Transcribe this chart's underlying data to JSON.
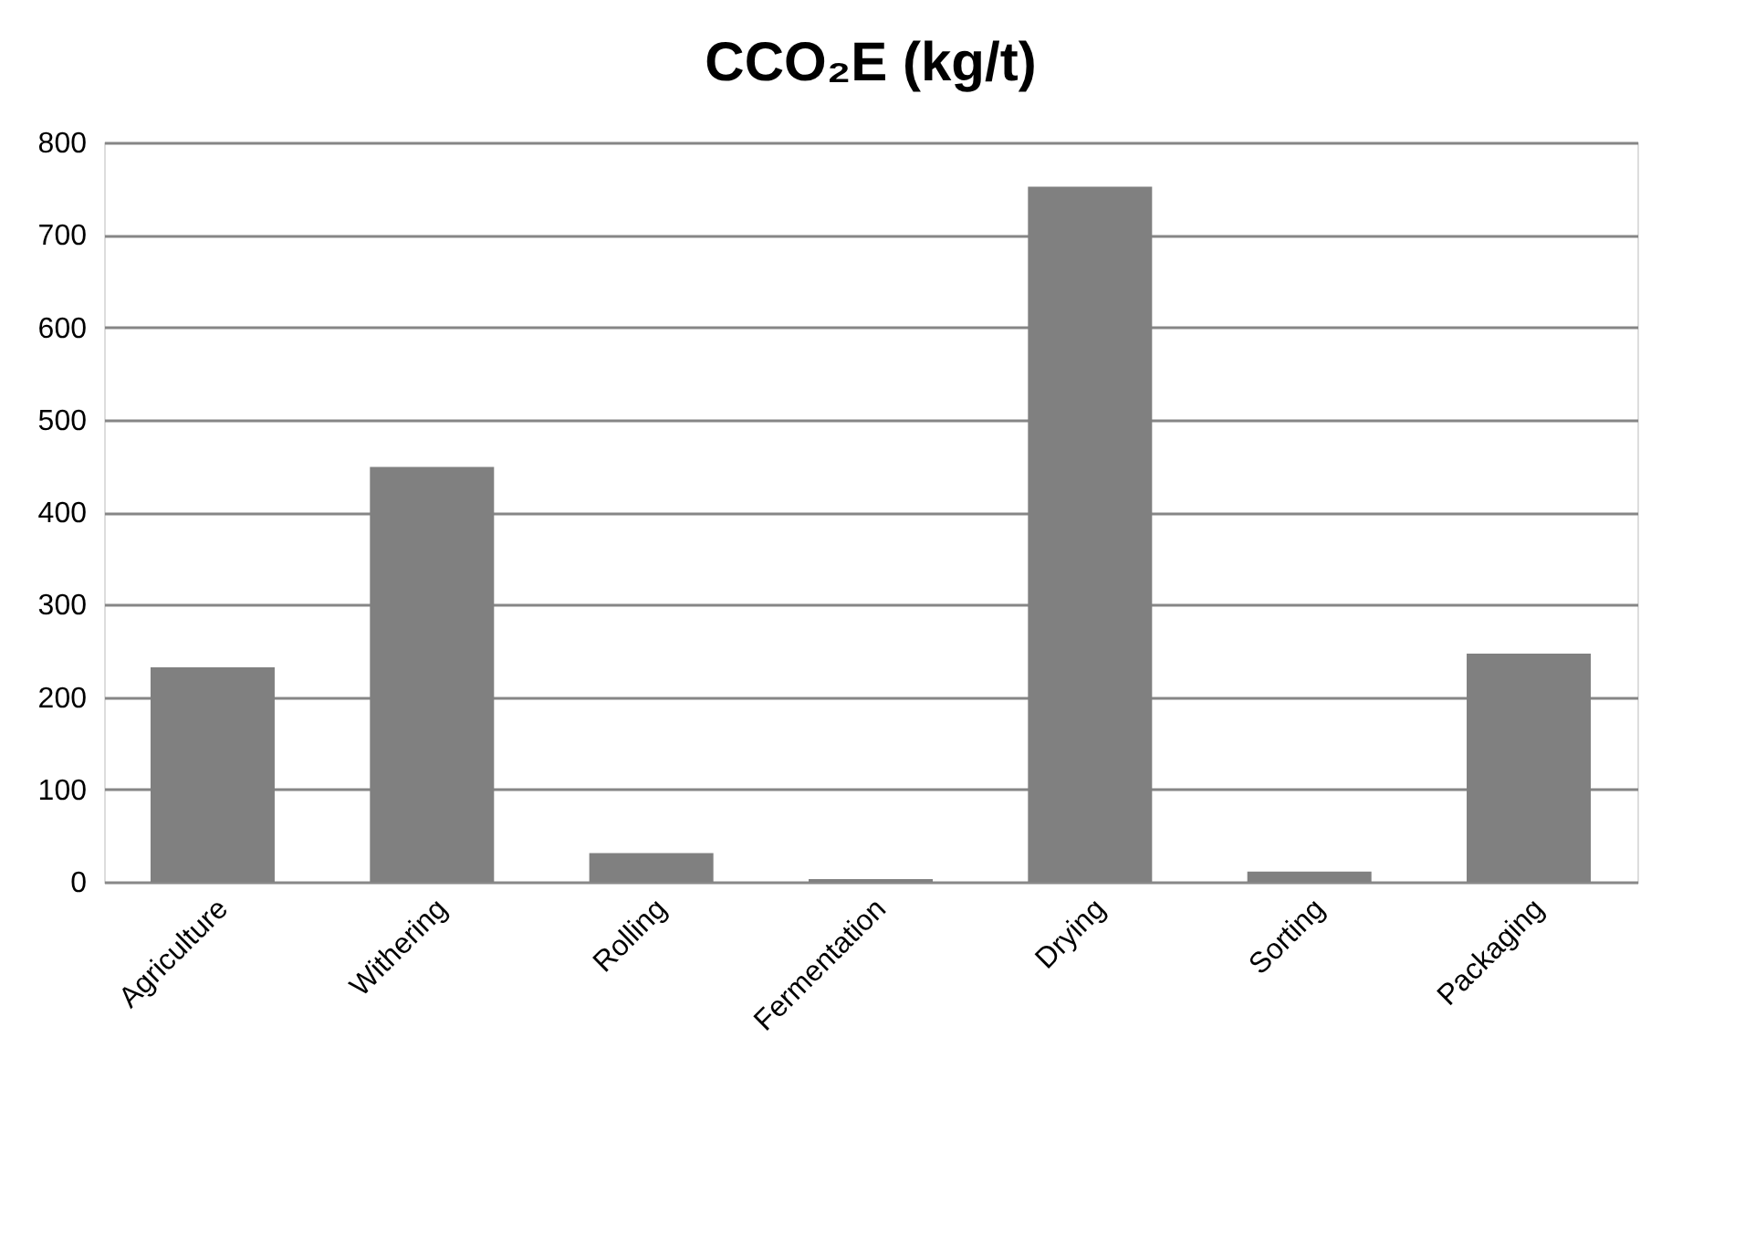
{
  "chart_data": {
    "type": "bar",
    "title": "CCO₂E (kg/t)",
    "categories": [
      "Agriculture",
      "Withering",
      "Rolling",
      "Fermentation",
      "Drying",
      "Sorting",
      "Packaging"
    ],
    "values": [
      232,
      449,
      31,
      3,
      752,
      11,
      247
    ],
    "color": "#808080",
    "ylim": [
      0,
      800
    ],
    "yticks": [
      0,
      100,
      200,
      300,
      400,
      500,
      600,
      700,
      800
    ],
    "grid": "y"
  }
}
